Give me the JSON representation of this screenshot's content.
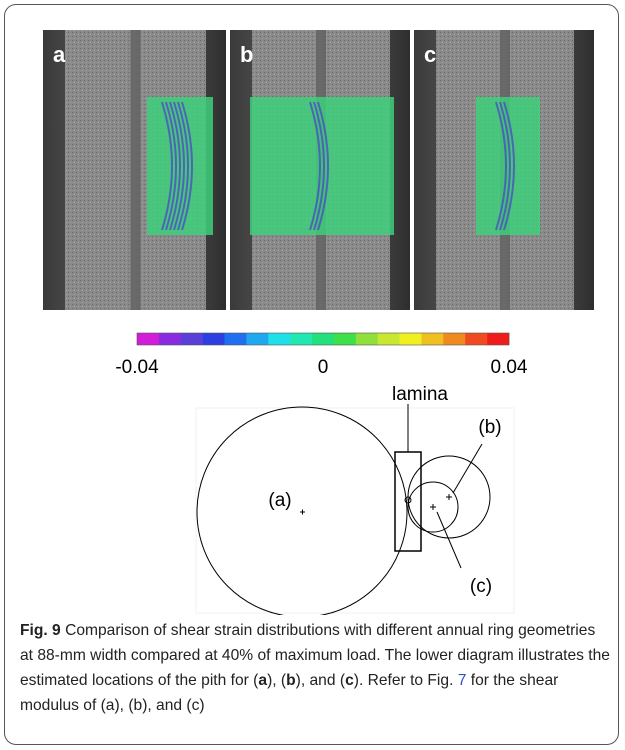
{
  "figure": {
    "panels": [
      {
        "label": "a"
      },
      {
        "label": "b"
      },
      {
        "label": "c"
      }
    ],
    "colorbar": {
      "range": [
        -0.04,
        0.04
      ],
      "ticks": [
        -0.04,
        0,
        0.04
      ],
      "colors": [
        "#d21cd8",
        "#8a2be2",
        "#5a3fd8",
        "#2d3fe0",
        "#1f6ff0",
        "#1fa7f0",
        "#1fe0e8",
        "#1fe8b0",
        "#22e07a",
        "#3ee04a",
        "#8fe03a",
        "#c8e830",
        "#f0f020",
        "#f0c020",
        "#f08a20",
        "#f04a20",
        "#f01c1c"
      ]
    },
    "diagram": {
      "labels": {
        "lamina": "lamina",
        "b": "(b)",
        "a": "(a)",
        "c": "(c)"
      }
    },
    "caption": {
      "label": "Fig. 9",
      "runs": [
        " Comparison of shear strain distributions with different annual ring geometries at 88-mm width compared at 40% of maximum load. The lower diagram illustrates the estimated locations of the pith for (",
        "a",
        "), (",
        "b",
        "), and (",
        "c",
        "). Refer to Fig. ",
        "7",
        " for the shear modulus of (a), (b), and (c)"
      ]
    }
  }
}
